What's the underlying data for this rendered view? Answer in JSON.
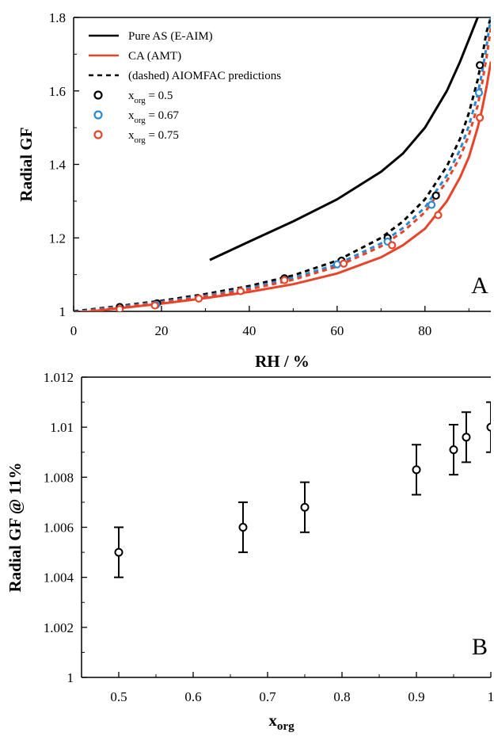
{
  "chart_data": [
    {
      "type": "line",
      "panel_label": "A",
      "xlabel": "RH / %",
      "ylabel": "Radial GF",
      "xlim": [
        0,
        95
      ],
      "ylim": [
        1.0,
        1.8
      ],
      "x_ticks": [
        0,
        20,
        40,
        60,
        80
      ],
      "x_tick_labels": [
        "0",
        "20",
        "40",
        "60",
        "80"
      ],
      "y_ticks": [
        1.0,
        1.2,
        1.4,
        1.6,
        1.8
      ],
      "y_tick_labels": [
        "1",
        "1.2",
        "1.4",
        "1.6",
        "1.8"
      ],
      "legend_position": "top-left",
      "legend": [
        {
          "label": "Pure AS (E-AIM)",
          "marker": "solid-line",
          "color": "#000000"
        },
        {
          "label": "CA (AMT)",
          "marker": "solid-line",
          "color": "#e8442a"
        },
        {
          "label": "(dashed) AIOMFAC predictions",
          "marker": "dashed-line",
          "color": "#000000"
        },
        {
          "label": "x",
          "sub": "org",
          "suffix": " = 0.5",
          "marker": "circle",
          "color": "#000000"
        },
        {
          "label": "x",
          "sub": "org",
          "suffix": " = 0.67",
          "marker": "circle",
          "color": "#2a8ad4"
        },
        {
          "label": "x",
          "sub": "org",
          "suffix": " = 0.75",
          "marker": "circle",
          "color": "#e8442a"
        }
      ],
      "series": [
        {
          "kind": "line",
          "style": "solid",
          "color": "#000000",
          "x": [
            31,
            40,
            50,
            60,
            70,
            75,
            80,
            85,
            88,
            90,
            92
          ],
          "y": [
            1.14,
            1.19,
            1.245,
            1.305,
            1.38,
            1.43,
            1.5,
            1.6,
            1.68,
            1.74,
            1.8
          ]
        },
        {
          "kind": "line",
          "style": "solid",
          "color": "#e8442a",
          "x": [
            0,
            10,
            20,
            30,
            40,
            50,
            60,
            70,
            75,
            80,
            85,
            88,
            90,
            92,
            93,
            94,
            95
          ],
          "y": [
            0.995,
            1.008,
            1.021,
            1.036,
            1.053,
            1.074,
            1.103,
            1.147,
            1.18,
            1.225,
            1.3,
            1.365,
            1.42,
            1.5,
            1.55,
            1.61,
            1.68
          ]
        },
        {
          "kind": "line",
          "style": "dashed",
          "color": "#000000",
          "x": [
            0,
            10,
            20,
            30,
            40,
            50,
            60,
            70,
            75,
            80,
            85,
            88,
            90,
            92,
            93,
            94,
            95
          ],
          "y": [
            1.0,
            1.014,
            1.029,
            1.047,
            1.069,
            1.098,
            1.138,
            1.2,
            1.245,
            1.305,
            1.395,
            1.47,
            1.54,
            1.63,
            1.69,
            1.76,
            1.8
          ]
        },
        {
          "kind": "line",
          "style": "dashed",
          "color": "#2a8ad4",
          "x": [
            0,
            10,
            20,
            30,
            40,
            50,
            60,
            70,
            75,
            80,
            85,
            88,
            90,
            92,
            93,
            94,
            95
          ],
          "y": [
            0.998,
            1.012,
            1.026,
            1.043,
            1.064,
            1.091,
            1.128,
            1.185,
            1.227,
            1.283,
            1.37,
            1.44,
            1.505,
            1.59,
            1.65,
            1.72,
            1.8
          ]
        },
        {
          "kind": "line",
          "style": "dashed",
          "color": "#e8442a",
          "x": [
            0,
            10,
            20,
            30,
            40,
            50,
            60,
            70,
            75,
            80,
            85,
            88,
            90,
            92,
            93,
            94,
            95
          ],
          "y": [
            0.997,
            1.01,
            1.024,
            1.04,
            1.06,
            1.086,
            1.122,
            1.177,
            1.217,
            1.27,
            1.355,
            1.42,
            1.48,
            1.56,
            1.62,
            1.69,
            1.77
          ]
        },
        {
          "kind": "points",
          "name": "x_org = 0.5",
          "color": "#000000",
          "x": [
            10.5,
            19,
            48,
            61,
            71.5,
            82.5,
            92.5
          ],
          "y": [
            1.012,
            1.022,
            1.09,
            1.138,
            1.2,
            1.315,
            1.67
          ]
        },
        {
          "kind": "points",
          "name": "x_org = 0.67",
          "color": "#2a8ad4",
          "x": [
            18.8,
            60,
            71.5,
            81.5,
            92.3
          ],
          "y": [
            1.018,
            1.128,
            1.19,
            1.29,
            1.595
          ]
        },
        {
          "kind": "points",
          "name": "x_org = 0.75",
          "color": "#e8442a",
          "x": [
            10.5,
            18.5,
            28.5,
            38,
            48,
            61.5,
            72.5,
            83,
            92.5
          ],
          "y": [
            1.006,
            1.016,
            1.035,
            1.055,
            1.085,
            1.13,
            1.18,
            1.262,
            1.527
          ]
        }
      ]
    },
    {
      "type": "scatter",
      "panel_label": "B",
      "xlabel": "x",
      "xlabel_sub": "org",
      "ylabel": "Radial GF @ 11%",
      "xlim": [
        0.45,
        1.0
      ],
      "ylim": [
        1.0,
        1.012
      ],
      "x_ticks": [
        0.5,
        0.6,
        0.7,
        0.8,
        0.9,
        1.0
      ],
      "x_tick_labels": [
        "0.5",
        "0.6",
        "0.7",
        "0.8",
        "0.9",
        "1"
      ],
      "y_ticks": [
        1.0,
        1.002,
        1.004,
        1.006,
        1.008,
        1.01,
        1.012
      ],
      "y_tick_labels": [
        "1",
        "1.002",
        "1.004",
        "1.006",
        "1.008",
        "1.01",
        "1.012"
      ],
      "x": [
        0.5,
        0.667,
        0.75,
        0.9,
        0.95,
        0.967,
        1.0
      ],
      "y": [
        1.005,
        1.006,
        1.0068,
        1.0083,
        1.0091,
        1.0096,
        1.01
      ],
      "error": [
        0.001,
        0.001,
        0.001,
        0.001,
        0.001,
        0.001,
        0.001
      ],
      "color": "#000000"
    }
  ]
}
